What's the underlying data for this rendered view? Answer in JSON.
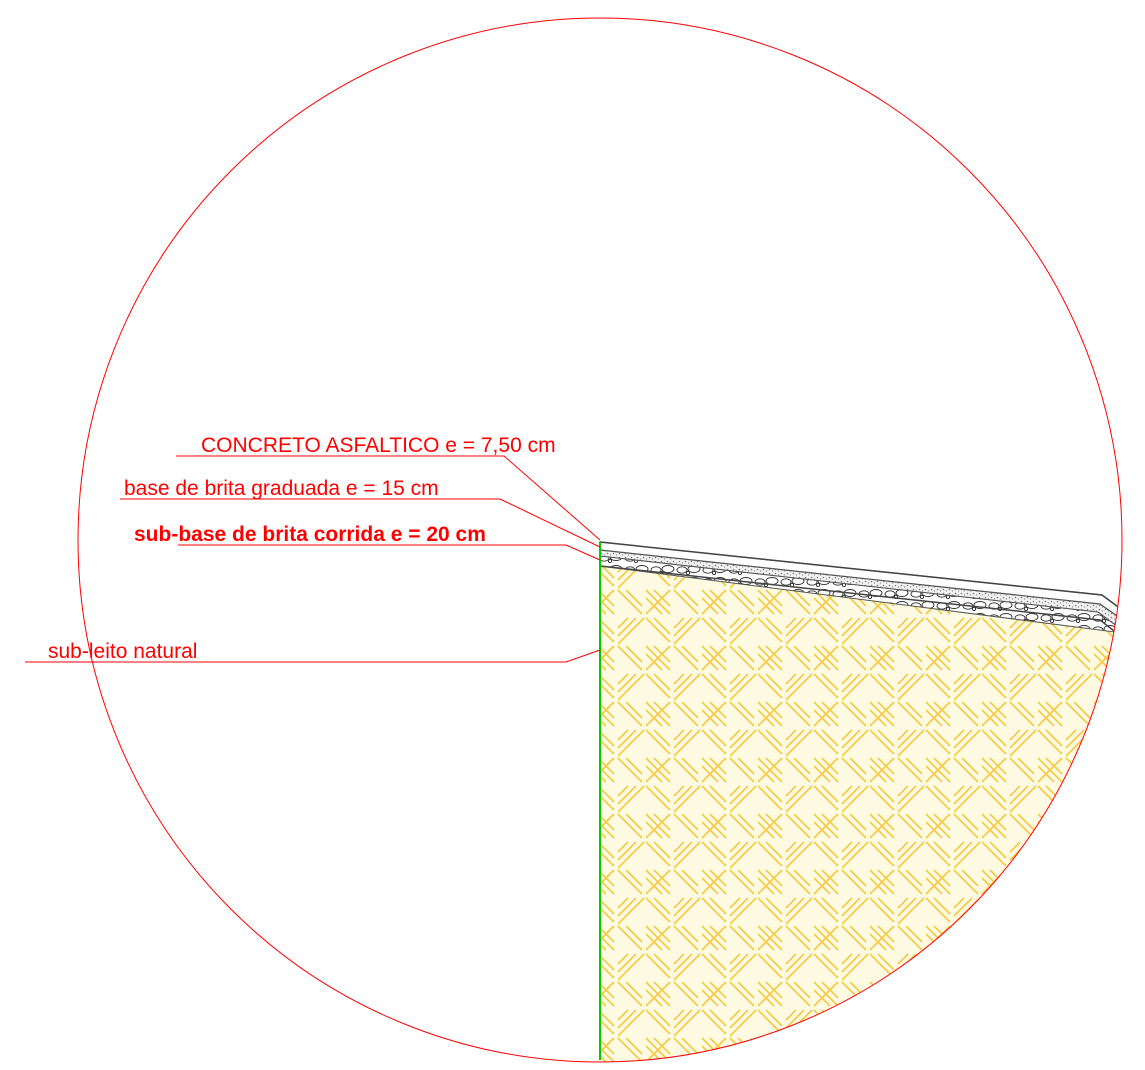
{
  "layers": [
    {
      "key": "asphalt",
      "label": "CONCRETO ASFALTICO e = 7,50 cm"
    },
    {
      "key": "base",
      "label": "base de brita graduada e = 15 cm"
    },
    {
      "key": "subbase",
      "label": "sub-base de brita corrida e = 20 cm"
    },
    {
      "key": "subgrade",
      "label": "sub-leito natural"
    }
  ],
  "colors": {
    "detail_circle": "#ff0000",
    "leader_lines": "#ff0000",
    "label_text": "#ff0000",
    "soil_hatch": "#f5c842",
    "soil_fill": "#fffbe3",
    "edge_line": "#00cc00",
    "pavement_lines": "#555555",
    "aggregate": "#333333"
  },
  "icons": {
    "soil": "herringbone-hatch",
    "subbase": "gravel-pattern",
    "base": "crushed-stone-dots"
  }
}
